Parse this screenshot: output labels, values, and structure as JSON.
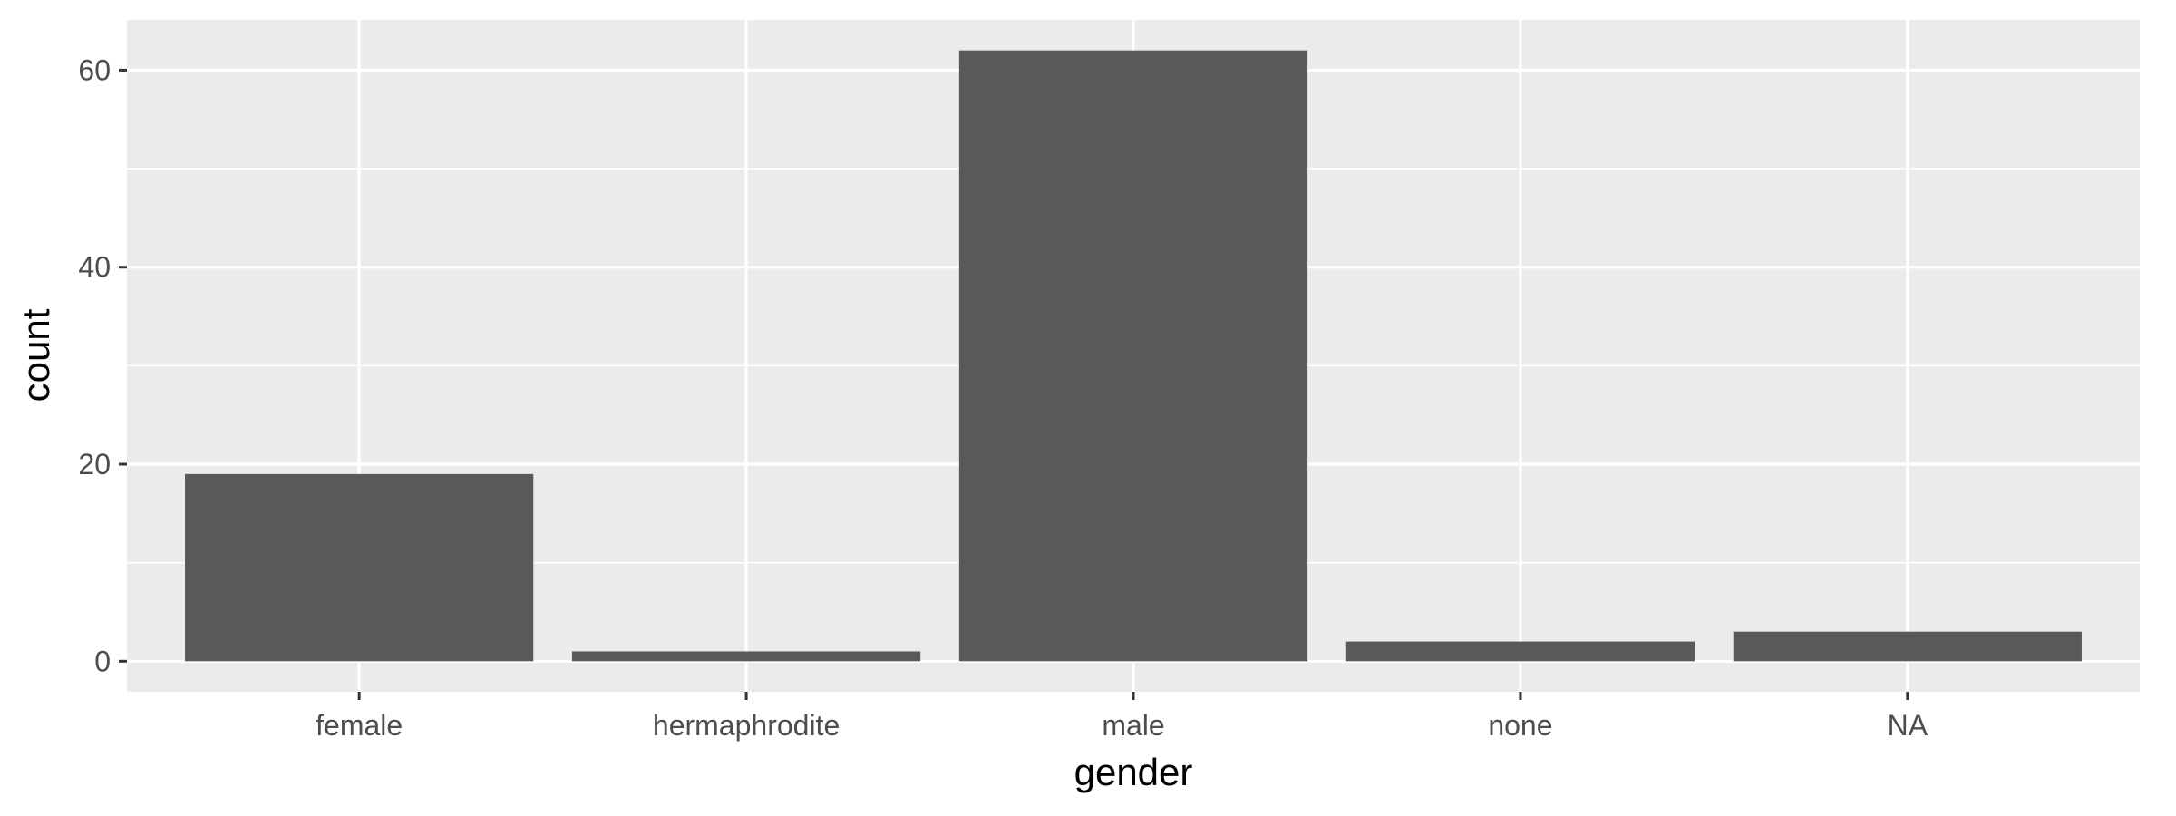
{
  "chart_data": {
    "type": "bar",
    "categories": [
      "female",
      "hermaphrodite",
      "male",
      "none",
      "NA"
    ],
    "values": [
      19,
      1,
      62,
      2,
      3
    ],
    "title": "",
    "xlabel": "gender",
    "ylabel": "count",
    "ylim": [
      -3.1,
      65.1
    ],
    "yticks": [
      0,
      20,
      40,
      60
    ],
    "ytick_labels": [
      "0",
      "20",
      "40",
      "60"
    ],
    "grid": true,
    "colors": {
      "bar": "#595959",
      "panel_background": "#ebebeb",
      "grid_line": "#ffffff",
      "axis_text": "#4d4d4d",
      "axis_title": "#000000"
    }
  }
}
